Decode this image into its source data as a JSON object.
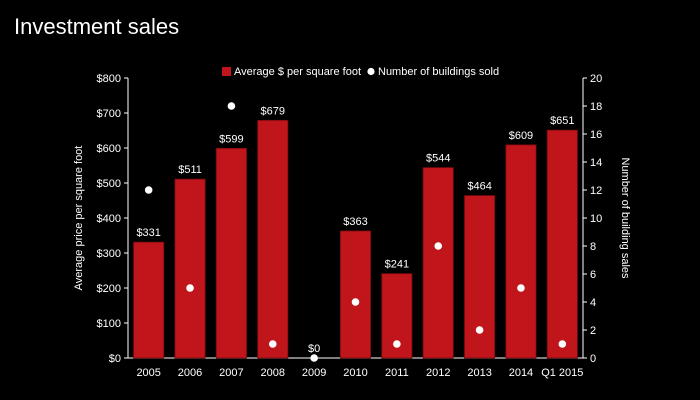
{
  "page": {
    "title": "Investment sales"
  },
  "chart_data": {
    "type": "bar",
    "categories": [
      "2005",
      "2006",
      "2007",
      "2008",
      "2009",
      "2010",
      "2011",
      "2012",
      "2013",
      "2014",
      "Q1 2015"
    ],
    "series": [
      {
        "name": "Average $ per square foot",
        "kind": "bar",
        "axis": "left",
        "values": [
          331,
          511,
          599,
          679,
          0,
          363,
          241,
          544,
          464,
          609,
          651
        ],
        "labels": [
          "$331",
          "$511",
          "$599",
          "$679",
          "$0",
          "$363",
          "$241",
          "$544",
          "$464",
          "$609",
          "$651"
        ],
        "color": "#c0151b"
      },
      {
        "name": "Number of buildings sold",
        "kind": "scatter",
        "axis": "right",
        "values": [
          12,
          5,
          18,
          1,
          0,
          4,
          1,
          8,
          2,
          5,
          1
        ],
        "color": "#ffffff"
      }
    ],
    "ylabel": "Average price per square foot",
    "y2label": "Number of building sales",
    "ylim": [
      0,
      800
    ],
    "y2lim": [
      0,
      20
    ],
    "yticks": [
      "$0",
      "$100",
      "$200",
      "$300",
      "$400",
      "$500",
      "$600",
      "$700",
      "$800"
    ],
    "y2ticks": [
      "0",
      "2",
      "4",
      "6",
      "8",
      "10",
      "12",
      "14",
      "16",
      "18",
      "20"
    ],
    "legend_position": "top",
    "grid": false
  }
}
